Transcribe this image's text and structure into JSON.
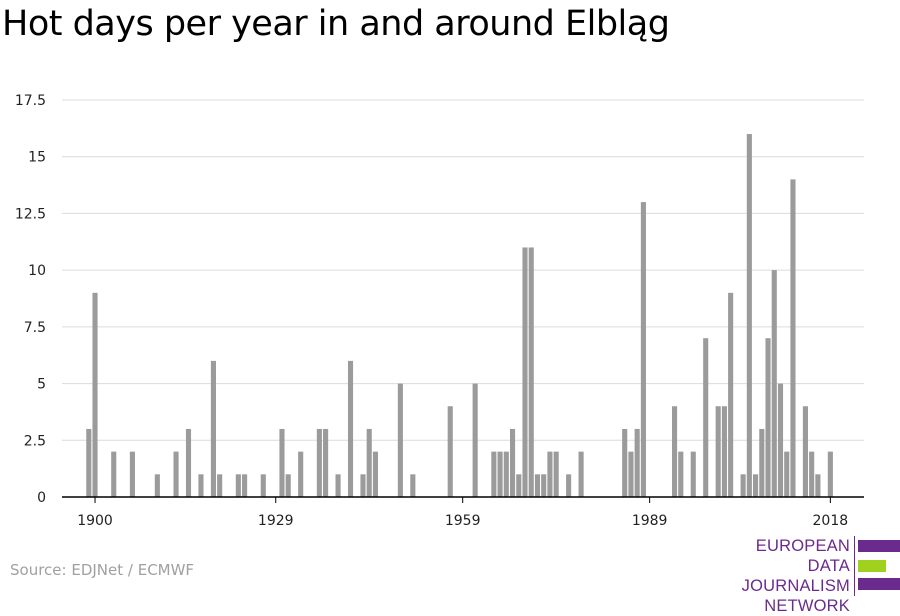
{
  "title": "Hot days per year in and around Elbląg",
  "source": "Source: EDJNet / ECMWF",
  "logo": {
    "line1": "EUROPEAN",
    "line2": "DATA JOURNALISM",
    "line3": "NETWORK",
    "colors": {
      "purple": "#6b2a8e",
      "green": "#9fd11e"
    }
  },
  "colors": {
    "bar": "#9b9b9b",
    "grid": "#dcdcdc",
    "axis": "#000000",
    "tick_text": "#222222"
  },
  "chart_data": {
    "type": "bar",
    "x": [
      1899,
      1900,
      1903,
      1906,
      1910,
      1913,
      1915,
      1917,
      1919,
      1920,
      1923,
      1924,
      1927,
      1930,
      1931,
      1933,
      1936,
      1937,
      1939,
      1941,
      1943,
      1944,
      1945,
      1949,
      1951,
      1957,
      1961,
      1964,
      1965,
      1966,
      1967,
      1968,
      1969,
      1970,
      1971,
      1972,
      1973,
      1974,
      1976,
      1978,
      1985,
      1986,
      1987,
      1988,
      1993,
      1994,
      1996,
      1998,
      2000,
      2001,
      2002,
      2004,
      2005,
      2006,
      2007,
      2008,
      2009,
      2010,
      2011,
      2012,
      2014,
      2015,
      2016,
      2018
    ],
    "values": [
      3,
      9,
      2,
      2,
      1,
      2,
      3,
      1,
      6,
      1,
      1,
      1,
      1,
      3,
      1,
      2,
      3,
      3,
      1,
      6,
      1,
      3,
      2,
      5,
      1,
      4,
      5,
      2,
      2,
      2,
      3,
      1,
      11,
      11,
      1,
      1,
      2,
      2,
      1,
      2,
      3,
      2,
      3,
      13,
      4,
      2,
      2,
      7,
      4,
      4,
      9,
      1,
      16,
      1,
      3,
      7,
      10,
      5,
      2,
      14,
      4,
      2,
      1,
      2
    ],
    "title": "Hot days per year in and around Elbląg",
    "xlabel": "",
    "ylabel": "",
    "ylim": [
      0,
      17.5
    ],
    "yticks": [
      0,
      2.5,
      5,
      7.5,
      10,
      12.5,
      15,
      17.5
    ],
    "ytick_labels": [
      "0",
      "2.5",
      "5",
      "7.5",
      "10",
      "12.5",
      "15",
      "17.5"
    ],
    "xticks": [
      1900,
      1929,
      1959,
      1989,
      2018
    ],
    "xtick_labels": [
      "1900",
      "1929",
      "1959",
      "1989",
      "2018"
    ],
    "grid": "horizontal"
  }
}
